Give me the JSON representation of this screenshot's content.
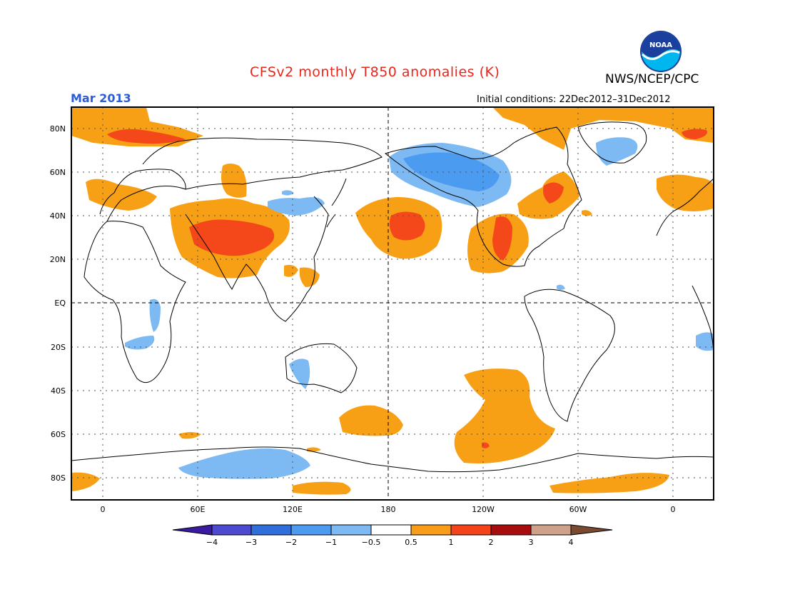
{
  "header": {
    "title": "CFSv2 monthly T850 anomalies (K)",
    "agency": "NWS/NCEP/CPC",
    "logo_text": "NOAA",
    "month": "Mar 2013",
    "initial_conditions": "Initial conditions: 22Dec2012–31Dec2012"
  },
  "map": {
    "lat_labels": [
      "80N",
      "60N",
      "40N",
      "20N",
      "EQ",
      "20S",
      "40S",
      "60S",
      "80S"
    ],
    "lon_labels": [
      "0",
      "60E",
      "120E",
      "180",
      "120W",
      "60W",
      "0"
    ]
  },
  "legend": {
    "ticks": [
      "−4",
      "−3",
      "−2",
      "−1",
      "−0.5",
      "0.5",
      "1",
      "2",
      "3",
      "4"
    ],
    "colors": [
      "#3a1aa0",
      "#4b4ad0",
      "#2f6fdc",
      "#4b9bf0",
      "#7db9f3",
      "#ffffff",
      "#f89c1a",
      "#f4421a",
      "#a80c0c",
      "#cfa08a",
      "#7a4a30"
    ]
  },
  "colors": {
    "title": "#e8261c",
    "month": "#2a5bd8",
    "warm1": "#f8a015",
    "warm2": "#f4481a",
    "warm3": "#c41e1e",
    "cool1": "#7db9f3",
    "cool2": "#4b9bf0"
  }
}
